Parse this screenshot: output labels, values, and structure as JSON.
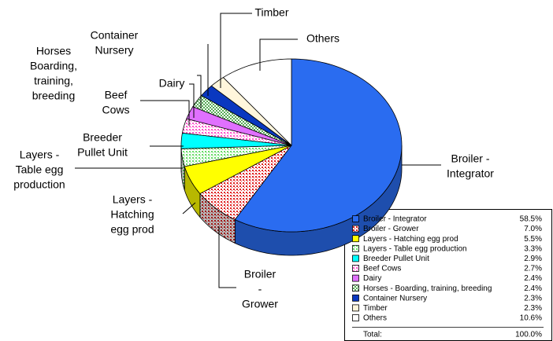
{
  "chart_data": {
    "type": "pie",
    "categories": [
      "Broiler - Integrator",
      "Broiler - Grower",
      "Layers - Hatching egg prod",
      "Layers - Table egg production",
      "Breeder Pullet Unit",
      "Beef Cows",
      "Dairy",
      "Horses - Boarding, training, breeding",
      "Container Nursery",
      "Timber",
      "Others"
    ],
    "values": [
      58.5,
      7.0,
      5.5,
      3.3,
      2.9,
      2.7,
      2.4,
      2.4,
      2.3,
      2.3,
      10.6
    ],
    "value_labels": [
      "58.5%",
      "7.0%",
      "5.5%",
      "3.3%",
      "2.9%",
      "2.7%",
      "2.4%",
      "2.4%",
      "2.3%",
      "2.3%",
      "10.6%"
    ],
    "colors": [
      "#2a6cf0",
      "#e02020",
      "#ffff00",
      "#66dd66",
      "#00ffff",
      "#ff55cc",
      "#e070ff",
      "#55aa55",
      "#0a38c0",
      "#fff6dc",
      "#ffffff"
    ],
    "patterns": [
      "solid",
      "dots",
      "solid",
      "dots",
      "solid",
      "dots",
      "solid",
      "checker",
      "solid",
      "solid",
      "solid"
    ],
    "slice_labels": [
      [
        "Broiler -",
        "Integrator"
      ],
      [
        "Broiler",
        "-",
        "Grower"
      ],
      [
        "Layers -",
        "Hatching",
        "egg prod"
      ],
      [
        "Layers -",
        "Table egg",
        "production"
      ],
      [
        "Breeder",
        "Pullet Unit"
      ],
      [
        "Beef",
        "Cows"
      ],
      [
        "Dairy"
      ],
      [
        "Horses",
        "Boarding,",
        "training,",
        "breeding"
      ],
      [
        "Container",
        "Nursery"
      ],
      [
        "Timber"
      ],
      [
        "Others"
      ]
    ],
    "total": {
      "label": "Total:",
      "value": "100.0%"
    },
    "start_angle": 0,
    "direction": "clockwise",
    "legend": "bottom-right"
  }
}
